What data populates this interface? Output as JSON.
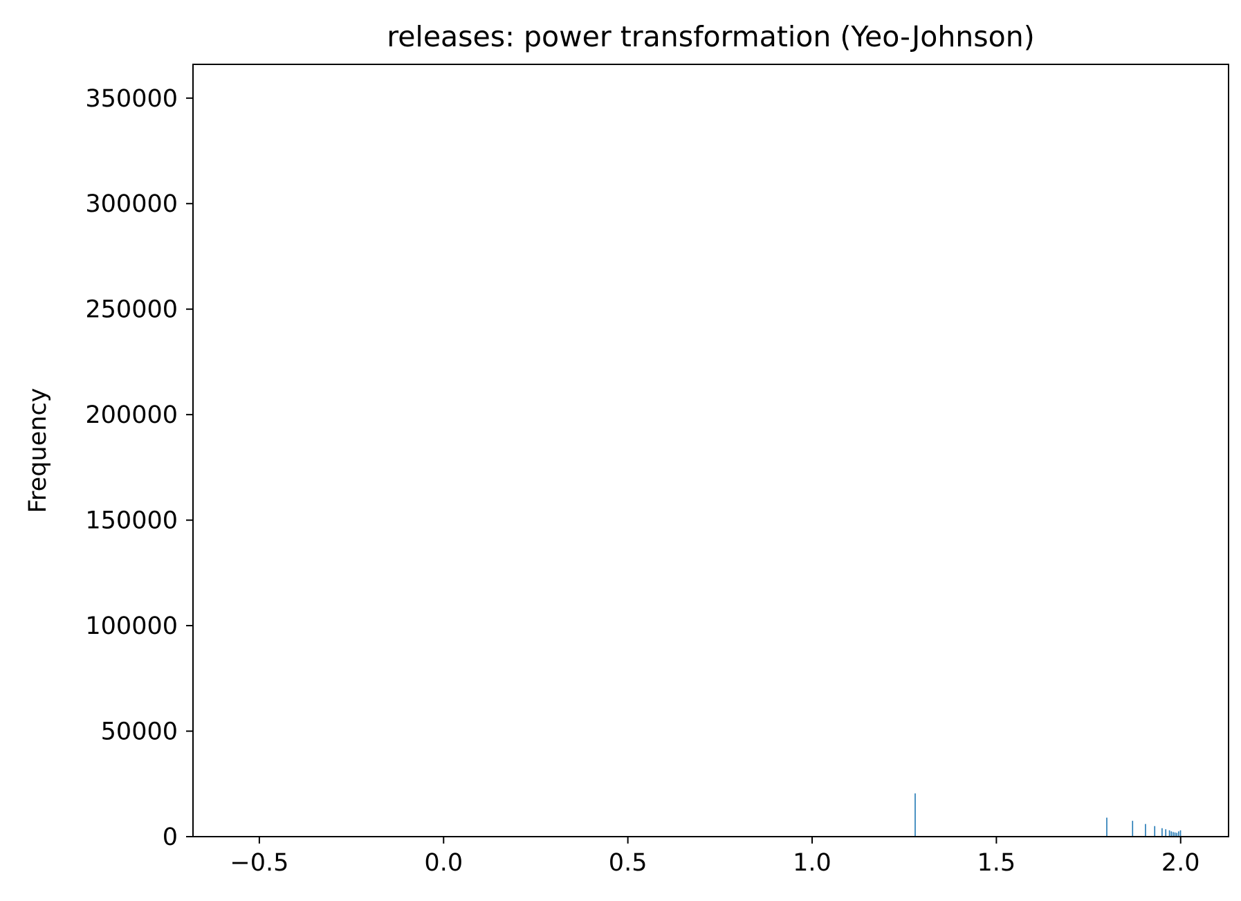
{
  "chart_data": {
    "type": "bar",
    "title": "releases: power transformation (Yeo-Johnson)",
    "xlabel": "",
    "ylabel": "Frequency",
    "xlim": [
      -0.68,
      2.13
    ],
    "ylim": [
      0,
      366000
    ],
    "x_ticks": [
      -0.5,
      0.0,
      0.5,
      1.0,
      1.5,
      2.0
    ],
    "x_tick_labels": [
      "−0.5",
      "0.0",
      "0.5",
      "1.0",
      "1.5",
      "2.0"
    ],
    "y_ticks": [
      0,
      50000,
      100000,
      150000,
      200000,
      250000,
      300000,
      350000
    ],
    "y_tick_labels": [
      "0",
      "50000",
      "100000",
      "150000",
      "200000",
      "250000",
      "300000",
      "350000"
    ],
    "grid": false,
    "bar_color": "#1f77b4",
    "series": [
      {
        "x": [
          1.28,
          1.8,
          1.87,
          1.905,
          1.93,
          1.95,
          1.96,
          1.97,
          1.975,
          1.98,
          1.985,
          1.99,
          1.995,
          2.0
        ],
        "values": [
          20500,
          9000,
          7500,
          6000,
          5000,
          4000,
          3500,
          3000,
          2500,
          2200,
          2000,
          1800,
          2500,
          3000
        ]
      }
    ]
  }
}
